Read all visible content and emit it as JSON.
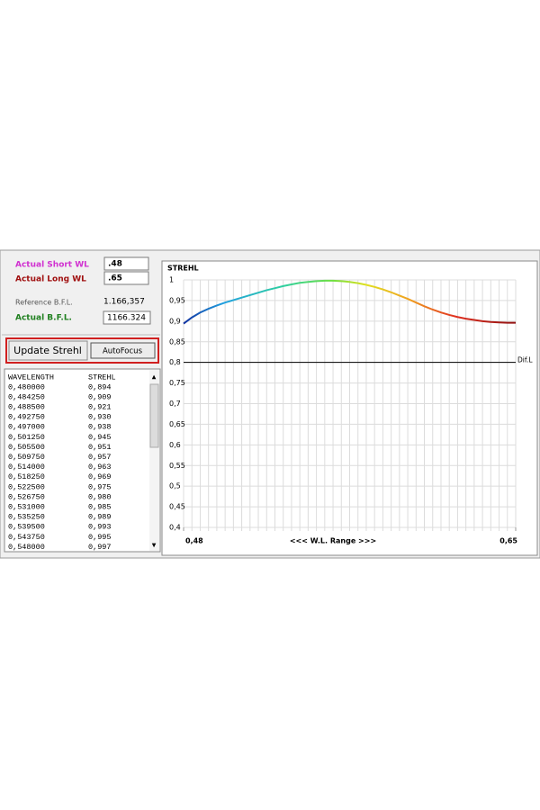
{
  "form": {
    "short_wl": {
      "label": "Actual Short WL",
      "value": ".48"
    },
    "long_wl": {
      "label": "Actual Long WL",
      "value": ".65"
    },
    "reference_bfl": {
      "label": "Reference  B.F.L.",
      "value": "1.166,357"
    },
    "actual_bfl": {
      "label": "Actual  B.F.L.",
      "value": "1166.324"
    }
  },
  "buttons": {
    "update": "Update Strehl",
    "autofocus": "AutoFocus"
  },
  "table": {
    "header": [
      "WAVELENGTH",
      "STREHL"
    ],
    "rows": [
      [
        "0,480000",
        "0,894"
      ],
      [
        "0,484250",
        "0,909"
      ],
      [
        "0,488500",
        "0,921"
      ],
      [
        "0,492750",
        "0,930"
      ],
      [
        "0,497000",
        "0,938"
      ],
      [
        "0,501250",
        "0,945"
      ],
      [
        "0,505500",
        "0,951"
      ],
      [
        "0,509750",
        "0,957"
      ],
      [
        "0,514000",
        "0,963"
      ],
      [
        "0,518250",
        "0,969"
      ],
      [
        "0,522500",
        "0,975"
      ],
      [
        "0,526750",
        "0,980"
      ],
      [
        "0,531000",
        "0,985"
      ],
      [
        "0,535250",
        "0,989"
      ],
      [
        "0,539500",
        "0,993"
      ],
      [
        "0,543750",
        "0,995"
      ],
      [
        "0,548000",
        "0,997"
      ]
    ]
  },
  "chart_data": {
    "type": "line",
    "title": "STREHL",
    "x_label": "<<<  W.L. Range  >>>",
    "x": [
      0.48,
      0.48425,
      0.4885,
      0.49275,
      0.497,
      0.50125,
      0.5055,
      0.50975,
      0.514,
      0.51825,
      0.5225,
      0.52675,
      0.531,
      0.53525,
      0.5395,
      0.54375,
      0.548,
      0.55225,
      0.5565,
      0.56075,
      0.565,
      0.56925,
      0.5735,
      0.57775,
      0.582,
      0.58625,
      0.5905,
      0.59475,
      0.599,
      0.60325,
      0.6075,
      0.61175,
      0.616,
      0.62025,
      0.6245,
      0.62875,
      0.633,
      0.63725,
      0.6415,
      0.64575,
      0.65
    ],
    "values": [
      0.894,
      0.909,
      0.921,
      0.93,
      0.938,
      0.945,
      0.951,
      0.957,
      0.963,
      0.969,
      0.975,
      0.98,
      0.985,
      0.989,
      0.993,
      0.995,
      0.997,
      0.998,
      0.998,
      0.997,
      0.995,
      0.992,
      0.988,
      0.983,
      0.977,
      0.97,
      0.962,
      0.954,
      0.945,
      0.936,
      0.928,
      0.921,
      0.915,
      0.91,
      0.906,
      0.903,
      0.9,
      0.898,
      0.897,
      0.896,
      0.896
    ],
    "xlim": [
      0.48,
      0.65
    ],
    "xticks": [
      {
        "value": 0.48,
        "label": "0,48"
      },
      {
        "value": 0.65,
        "label": "0,65"
      }
    ],
    "ylim": [
      0.4,
      1
    ],
    "yticks": [
      1,
      {
        "value": 0.95,
        "label": "0,95"
      },
      {
        "value": 0.9,
        "label": "0,9"
      },
      {
        "value": 0.85,
        "label": "0,85"
      },
      {
        "value": 0.8,
        "label": "0,8"
      },
      {
        "value": 0.75,
        "label": "0,75"
      },
      {
        "value": 0.7,
        "label": "0,7"
      },
      {
        "value": 0.65,
        "label": "0,65"
      },
      {
        "value": 0.6,
        "label": "0,6"
      },
      {
        "value": 0.55,
        "label": "0,55"
      },
      {
        "value": 0.5,
        "label": "0,5"
      },
      {
        "value": 0.45,
        "label": "0,45"
      },
      {
        "value": 0.4,
        "label": "0,4"
      }
    ],
    "threshold": {
      "value": 0.8,
      "label": "Dif.L"
    },
    "grid": true
  }
}
